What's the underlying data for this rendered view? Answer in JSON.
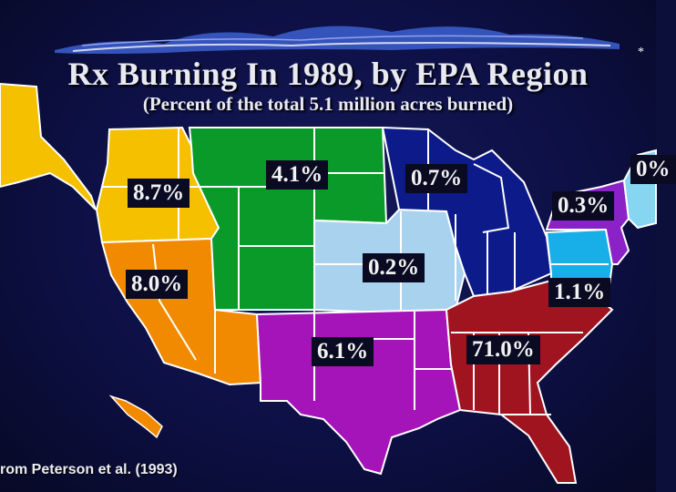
{
  "title": "Rx Burning In 1989, by EPA Region",
  "subtitle": "(Percent of the total 5.1 million acres burned)",
  "credit": "rom Peterson et al. (1993)",
  "corner_mark": "*",
  "regions": [
    {
      "id": "region-10-northwest",
      "label": "8.7%",
      "color": "#f5c000"
    },
    {
      "id": "region-8-mountains-plains",
      "label": "4.1%",
      "color": "#0a9a2a"
    },
    {
      "id": "region-5-great-lakes",
      "label": "0.7%",
      "color": "#0c1a8a"
    },
    {
      "id": "region-1-new-england",
      "label": "0%",
      "color": "#86d6f2"
    },
    {
      "id": "region-2-ny-nj",
      "label": "0.3%",
      "color": "#8a22c8"
    },
    {
      "id": "region-9-pacific-southwest",
      "label": "8.0%",
      "color": "#f28a00"
    },
    {
      "id": "region-7-midwest",
      "label": "0.2%",
      "color": "#a9d2ee"
    },
    {
      "id": "region-3-mid-atlantic",
      "label": "1.1%",
      "color": "#18aee8"
    },
    {
      "id": "region-6-south-central",
      "label": "6.1%",
      "color": "#a514b8"
    },
    {
      "id": "region-4-southeast",
      "label": "71.0%",
      "color": "#a01420"
    }
  ]
}
